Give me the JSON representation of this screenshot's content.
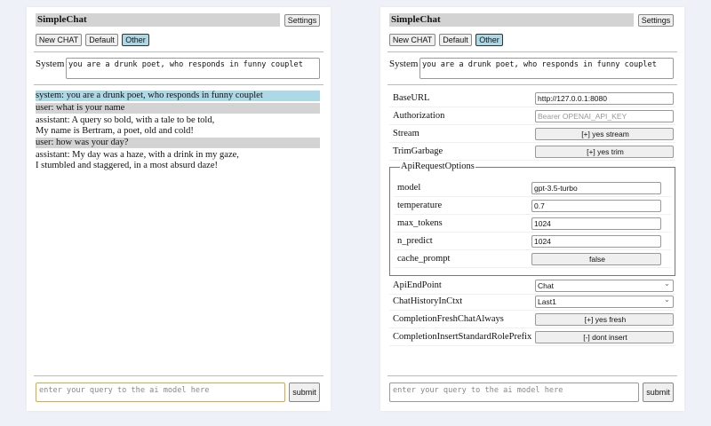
{
  "app_title": "SimpleChat",
  "settings_label": "Settings",
  "chat_buttons": [
    "New CHAT",
    "Default",
    "Other"
  ],
  "system_label": "System",
  "system_prompt": "you are a drunk poet, who responds in funny couplet",
  "messages": [
    {
      "role": "system",
      "lines": [
        "system: you are a drunk poet, who responds in funny couplet"
      ]
    },
    {
      "role": "user",
      "lines": [
        "user: what is your name"
      ]
    },
    {
      "role": "assistant",
      "lines": [
        "assistant: A query so bold, with a tale to be told,",
        "My name is Bertram, a poet, old and cold!"
      ]
    },
    {
      "role": "user",
      "lines": [
        "user: how was your day?"
      ]
    },
    {
      "role": "assistant",
      "lines": [
        "assistant: My day was a haze, with a drink in my gaze,",
        "I stumbled and staggered, in a most absurd daze!"
      ]
    }
  ],
  "query_placeholder": "enter your query to the ai model here",
  "submit_label": "submit",
  "settings": {
    "base_url": {
      "label": "BaseURL",
      "value": "http://127.0.0.1:8080"
    },
    "authorization": {
      "label": "Authorization",
      "placeholder": "Bearer OPENAI_API_KEY"
    },
    "stream": {
      "label": "Stream",
      "value": "[+] yes stream"
    },
    "trim_garbage": {
      "label": "TrimGarbage",
      "value": "[+] yes trim"
    },
    "api_request_options": {
      "legend": "ApiRequestOptions",
      "model": {
        "label": "model",
        "value": "gpt-3.5-turbo"
      },
      "temperature": {
        "label": "temperature",
        "value": "0.7"
      },
      "max_tokens": {
        "label": "max_tokens",
        "value": "1024"
      },
      "n_predict": {
        "label": "n_predict",
        "value": "1024"
      },
      "cache_prompt": {
        "label": "cache_prompt",
        "value": "false"
      }
    },
    "api_endpoint": {
      "label": "ApiEndPoint",
      "value": "Chat"
    },
    "chat_history": {
      "label": "ChatHistoryInCtxt",
      "value": "Last1"
    },
    "fresh_chat": {
      "label": "CompletionFreshChatAlways",
      "value": "[+] yes fresh"
    },
    "role_prefix": {
      "label": "CompletionInsertStandardRolePrefix",
      "value": "[-] dont insert"
    }
  },
  "colors": {
    "selected": "#add8e6",
    "user_bg": "#d3d3d3",
    "focus": "#e0a83a"
  }
}
